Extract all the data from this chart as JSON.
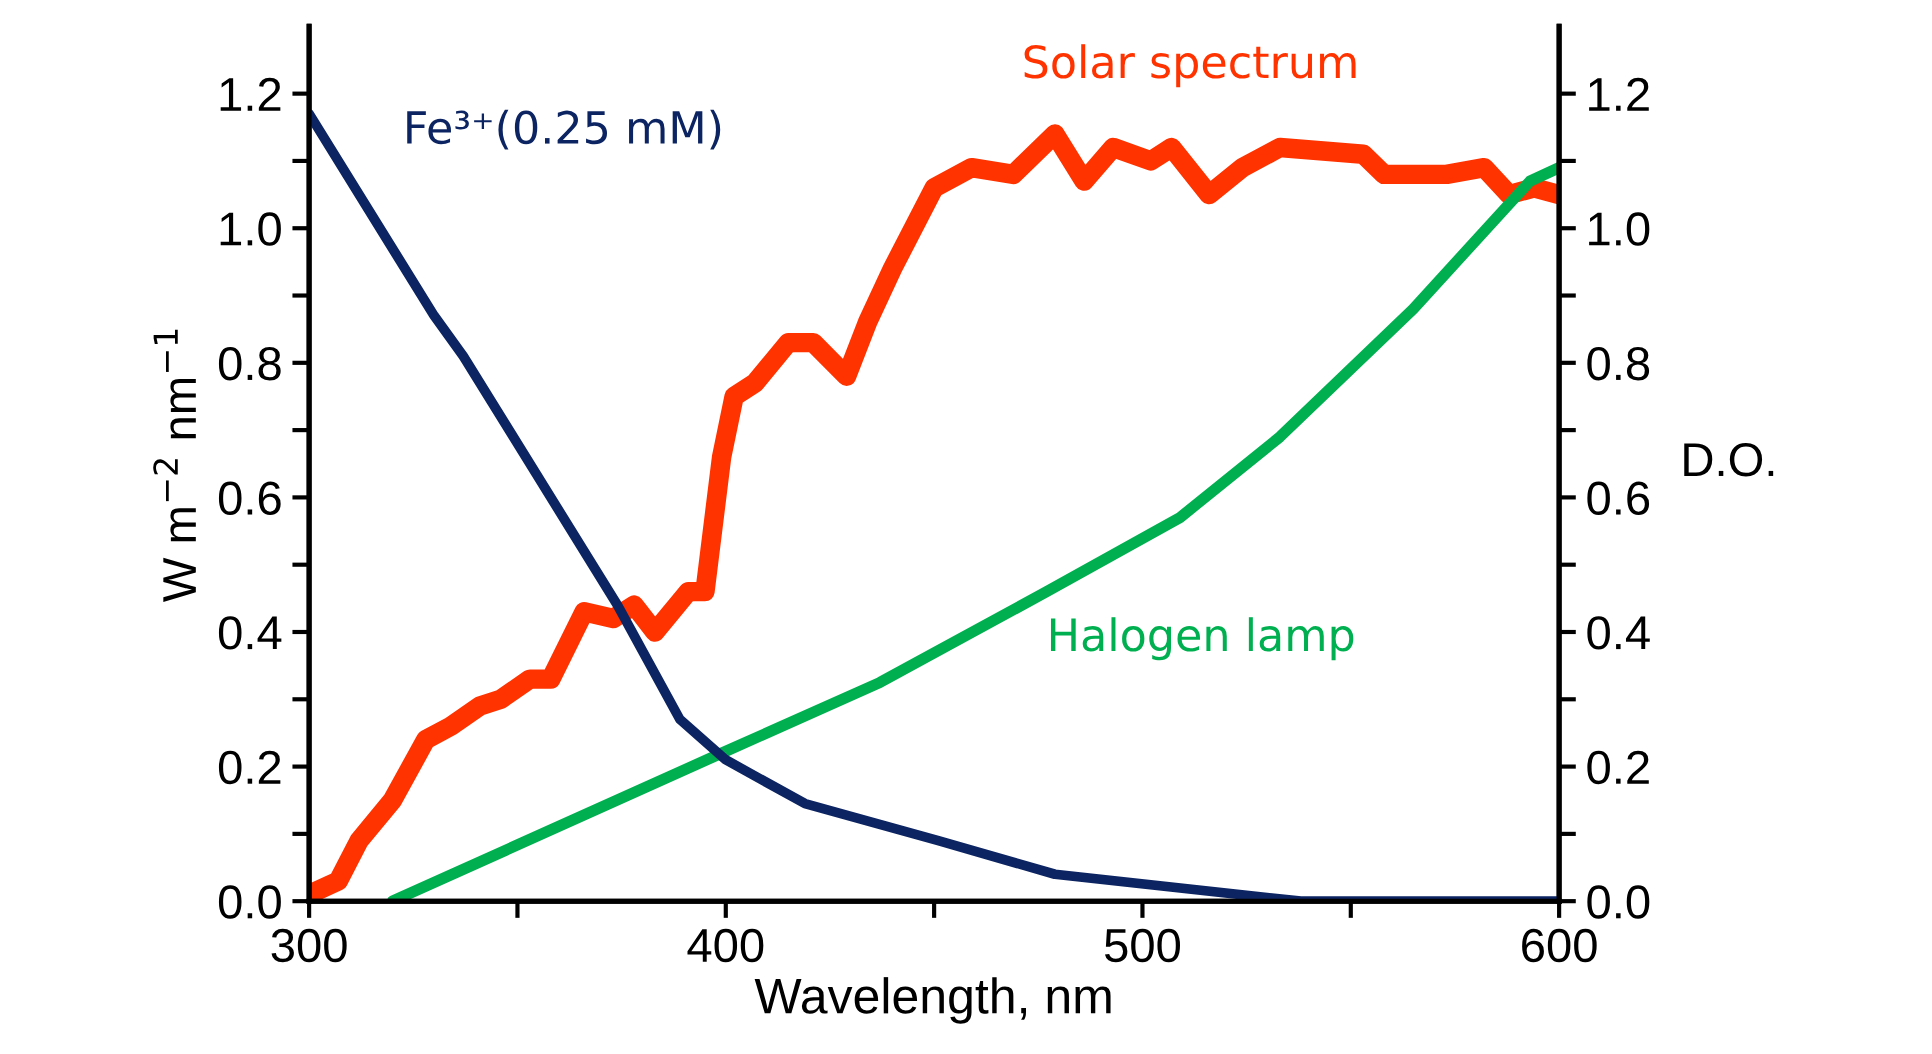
{
  "chart_data": {
    "type": "line",
    "xlabel": "Wavelength, nm",
    "ylabel": "W m$^{−2}$ nm$^{−1}$",
    "y2label": "D.O.",
    "xlim": [
      300,
      600
    ],
    "xticks": [
      300,
      {
        "value": 350,
        "label": null
      },
      400,
      {
        "value": 450,
        "label": null
      },
      500,
      {
        "value": 550,
        "label": null
      },
      600
    ],
    "ylim": [
      0,
      1.3
    ],
    "yticks": [
      "0.0",
      {
        "value": 0.1,
        "label": null
      },
      0.2,
      {
        "value": 0.3,
        "label": null
      },
      0.4,
      {
        "value": 0.5,
        "label": null
      },
      0.6,
      {
        "value": 0.7,
        "label": null
      },
      0.8,
      {
        "value": 0.9,
        "label": null
      },
      "1.0",
      {
        "value": 1.1,
        "label": null
      },
      1.2
    ],
    "y2lim": [
      0,
      1.3
    ],
    "y2ticks": [
      "0.0",
      {
        "value": 0.1,
        "label": null
      },
      0.2,
      {
        "value": 0.3,
        "label": null
      },
      0.4,
      {
        "value": 0.5,
        "label": null
      },
      0.6,
      {
        "value": 0.7,
        "label": null
      },
      0.8,
      {
        "value": 0.9,
        "label": null
      },
      "1.0",
      {
        "value": 1.1,
        "label": null
      },
      1.2
    ],
    "grid": false,
    "legend": false,
    "marker": "none",
    "line_style": "solid",
    "series": [
      {
        "name": "Solar spectrum",
        "color": "#ff3300",
        "x": [
          300,
          307,
          312,
          320,
          328,
          334,
          341,
          346,
          353,
          358,
          366,
          373,
          378,
          383,
          391,
          395,
          399,
          402,
          407,
          415,
          421,
          429,
          434,
          440,
          450,
          459,
          469,
          479,
          486,
          493,
          502,
          507,
          516,
          524,
          533,
          553,
          558,
          573,
          582,
          588,
          594,
          600
        ],
        "values": [
          0.01,
          0.03,
          0.09,
          0.15,
          0.24,
          0.26,
          0.29,
          0.3,
          0.33,
          0.33,
          0.43,
          0.42,
          0.44,
          0.4,
          0.46,
          0.46,
          0.66,
          0.75,
          0.77,
          0.83,
          0.83,
          0.78,
          0.86,
          0.94,
          1.06,
          1.09,
          1.08,
          1.14,
          1.07,
          1.12,
          1.1,
          1.12,
          1.05,
          1.09,
          1.12,
          1.11,
          1.08,
          1.08,
          1.09,
          1.05,
          1.06,
          1.05
        ]
      },
      {
        "name": "Fe³⁺(0.25 mM)",
        "color": "#0c2462",
        "axis": "y2",
        "x": [
          300,
          330,
          337,
          374,
          389,
          400,
          419,
          451,
          479,
          538,
          600
        ],
        "values": [
          1.17,
          0.87,
          0.81,
          0.44,
          0.27,
          0.21,
          0.145,
          0.09,
          0.04,
          0.0,
          0.0
        ]
      },
      {
        "name": "Halogen lamp",
        "color": "#00b050",
        "x": [
          320,
          399,
          437,
          477,
          509,
          533,
          565,
          593,
          600
        ],
        "values": [
          0.0,
          0.22,
          0.325,
          0.46,
          0.57,
          0.69,
          0.88,
          1.07,
          1.09
        ]
      }
    ]
  }
}
